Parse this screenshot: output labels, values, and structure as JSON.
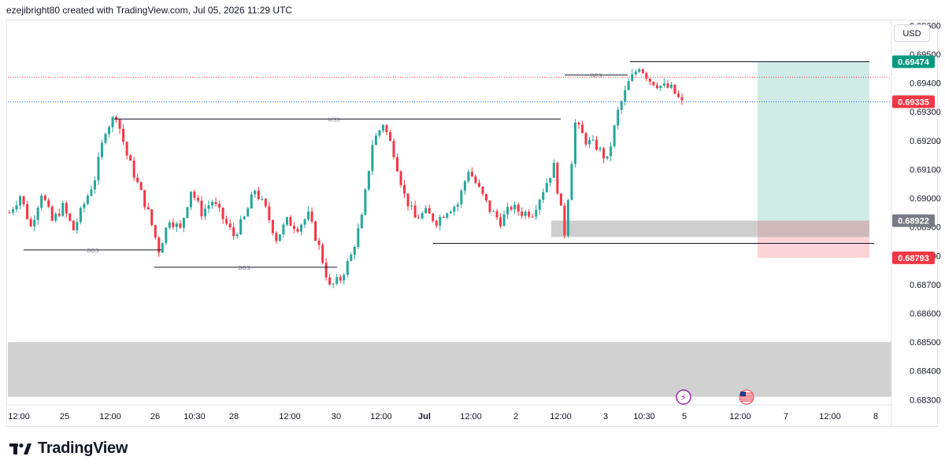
{
  "header": {
    "attribution": "ezejibright80 created with TradingView.com, Jul 05, 2026 11:29 UTC"
  },
  "currency_button": "USD",
  "brand": {
    "name": "TradingView"
  },
  "colors": {
    "up": "#26a69a",
    "down": "#f23645",
    "target_zone": "#cfece6",
    "stop_zone": "#fcd3d7",
    "zone_gray": "#c9c9c9",
    "price_tag_red": "#f23645",
    "price_tag_green": "#089981",
    "price_tag_gray": "#787b86"
  },
  "chart_data": {
    "type": "candlestick",
    "symbol_pair_hint": "",
    "y_axis": {
      "ticks": [
        "0.69600",
        "0.69500",
        "0.69400",
        "0.69300",
        "0.69200",
        "0.69100",
        "0.69000",
        "0.68900",
        "0.68800",
        "0.68700",
        "0.68600",
        "0.68500",
        "0.68400",
        "0.68300"
      ],
      "range": [
        0.6829,
        0.6962
      ]
    },
    "x_axis": {
      "ticks": [
        "12:00",
        "25",
        "12:00",
        "26",
        "10:30",
        "28",
        "12:00",
        "30",
        "12:00",
        "Jul",
        "12:00",
        "2",
        "12:00",
        "3",
        "10:30",
        "5",
        "12:00",
        "7",
        "12:00",
        "8"
      ]
    },
    "price_labels": [
      {
        "value": "0.69474",
        "style": "green"
      },
      {
        "value": "0.69335",
        "style": "red"
      },
      {
        "value": "0.68922",
        "style": "gray"
      },
      {
        "value": "0.68793",
        "style": "red"
      }
    ],
    "structure_labels": [
      "BOS",
      "MSS",
      "BOS",
      "BOS"
    ],
    "levels": {
      "take_profit": 0.69474,
      "entry": 0.68922,
      "stop_loss": 0.68793,
      "current": 0.69335,
      "dotted_red": 0.6942
    },
    "zones": [
      {
        "name": "demand-zone-lower",
        "from": 0.685,
        "to": 0.6831
      },
      {
        "name": "order-block",
        "from": 0.68922,
        "to": 0.68865
      }
    ],
    "path_points": [
      [
        0,
        0.6895
      ],
      [
        1,
        0.6901
      ],
      [
        2,
        0.689
      ],
      [
        3,
        0.6902
      ],
      [
        4,
        0.6892
      ],
      [
        5,
        0.6897
      ],
      [
        6,
        0.6889
      ],
      [
        7,
        0.6898
      ],
      [
        8,
        0.6907
      ],
      [
        9,
        0.6924
      ],
      [
        10,
        0.6929
      ],
      [
        11,
        0.6915
      ],
      [
        12,
        0.6905
      ],
      [
        13,
        0.6895
      ],
      [
        14,
        0.6882
      ],
      [
        15,
        0.6893
      ],
      [
        16,
        0.6889
      ],
      [
        17,
        0.6903
      ],
      [
        18,
        0.6895
      ],
      [
        19,
        0.6899
      ],
      [
        20,
        0.6893
      ],
      [
        21,
        0.6887
      ],
      [
        22,
        0.6893
      ],
      [
        23,
        0.6903
      ],
      [
        24,
        0.6896
      ],
      [
        25,
        0.6886
      ],
      [
        26,
        0.6892
      ],
      [
        27,
        0.689
      ],
      [
        28,
        0.6894
      ],
      [
        29,
        0.6883
      ],
      [
        30,
        0.6869
      ],
      [
        31,
        0.6872
      ],
      [
        32,
        0.688
      ],
      [
        33,
        0.6893
      ],
      [
        34,
        0.6919
      ],
      [
        35,
        0.6926
      ],
      [
        36,
        0.6916
      ],
      [
        37,
        0.6901
      ],
      [
        38,
        0.6893
      ],
      [
        39,
        0.6895
      ],
      [
        40,
        0.6892
      ],
      [
        41,
        0.6896
      ],
      [
        42,
        0.6898
      ],
      [
        43,
        0.691
      ],
      [
        44,
        0.6903
      ],
      [
        45,
        0.6896
      ],
      [
        46,
        0.6892
      ],
      [
        47,
        0.6897
      ],
      [
        48,
        0.6895
      ],
      [
        49,
        0.6895
      ],
      [
        50,
        0.6903
      ],
      [
        51,
        0.6911
      ],
      [
        52,
        0.6888
      ],
      [
        53,
        0.6926
      ],
      [
        54,
        0.692
      ],
      [
        55,
        0.6918
      ],
      [
        56,
        0.6913
      ],
      [
        57,
        0.693
      ],
      [
        58,
        0.694
      ],
      [
        59,
        0.6946
      ],
      [
        60,
        0.6941
      ],
      [
        61,
        0.6939
      ],
      [
        62,
        0.6938
      ],
      [
        63,
        0.6933
      ]
    ]
  }
}
